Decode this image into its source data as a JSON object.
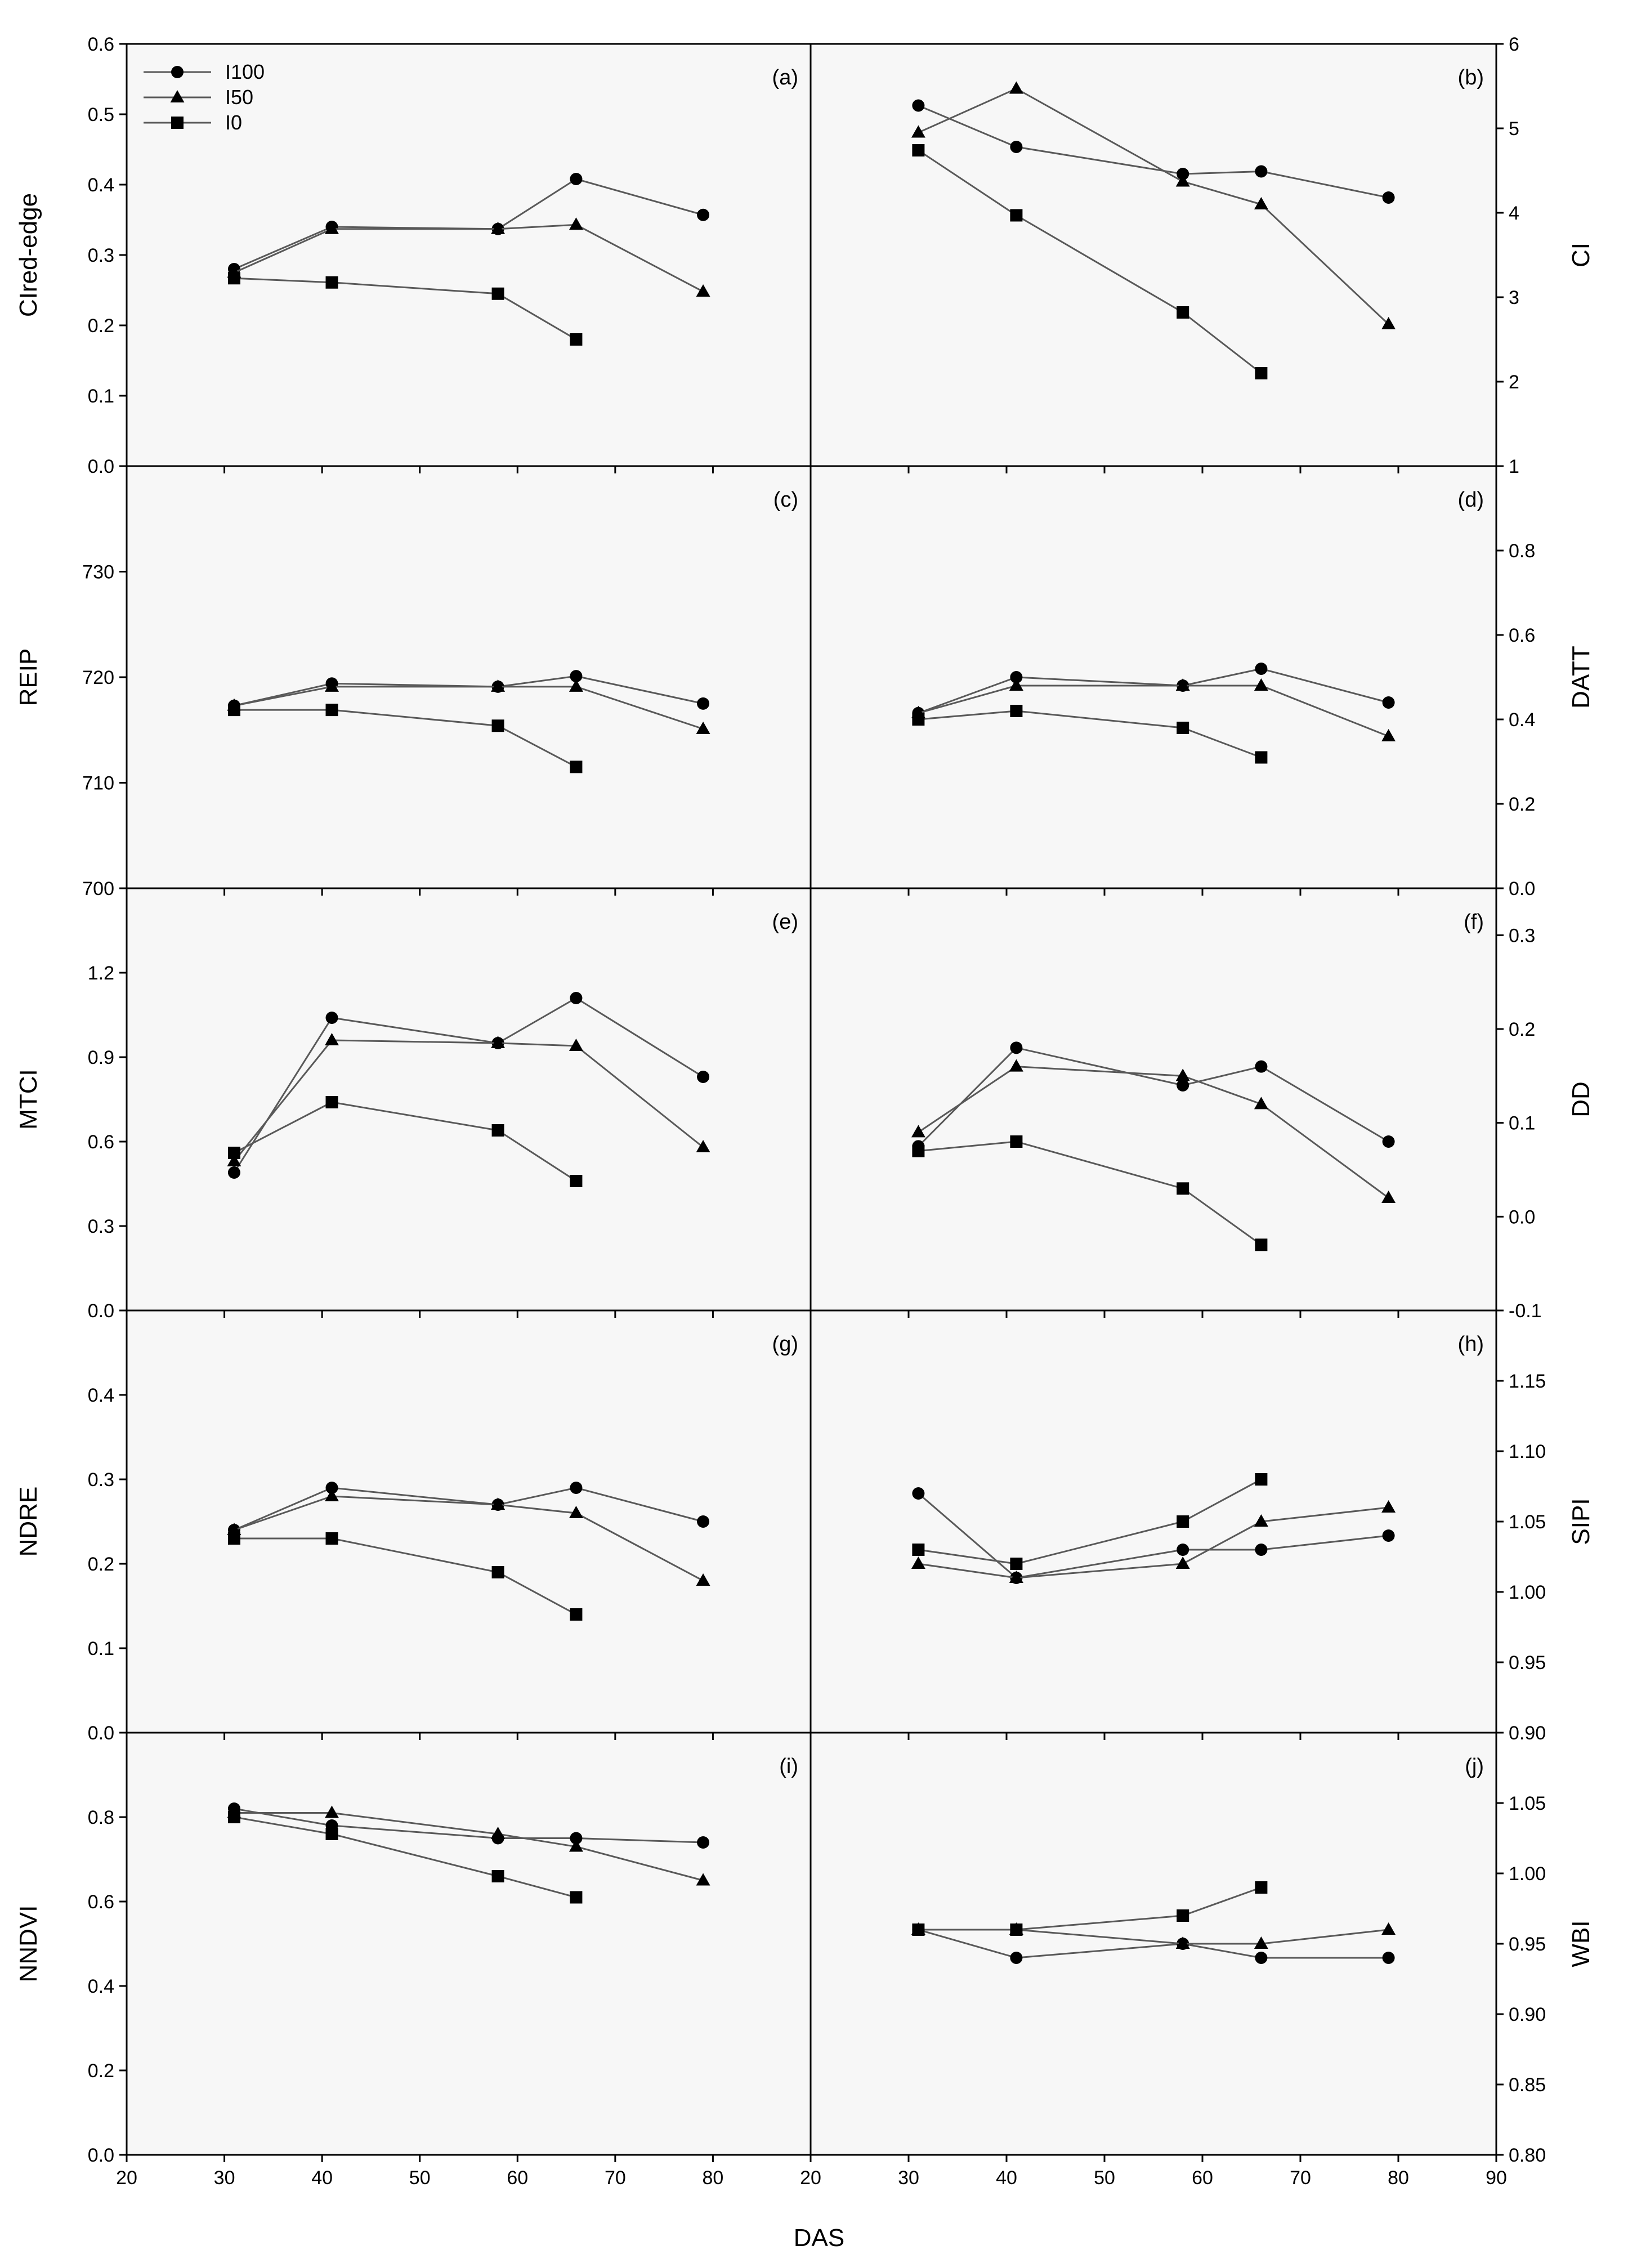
{
  "chart_data": {
    "type": "line",
    "xlabel": "DAS",
    "legend": {
      "placement": "top-left of panel (a)",
      "entries": [
        {
          "name": "I100",
          "marker": "circle"
        },
        {
          "name": "I50",
          "marker": "triangle"
        },
        {
          "name": "I0",
          "marker": "square"
        }
      ]
    },
    "panels": [
      {
        "id": "a",
        "label": "(a)",
        "ylabel": "CIred-edge",
        "column": "left",
        "row": 0,
        "xlim": [
          20,
          90
        ],
        "ylim": [
          0.0,
          0.6
        ],
        "xticks": [
          "20",
          "30",
          "40",
          "50",
          "60",
          "70",
          "80"
        ],
        "show_xticks": false,
        "yticks": [
          "0.0",
          "0.1",
          "0.2",
          "0.3",
          "0.4",
          "0.5",
          "0.6"
        ],
        "series": [
          {
            "name": "I100",
            "marker": "circle",
            "x": [
              31,
              41,
              58,
              66,
              79
            ],
            "y": [
              0.28,
              0.34,
              0.337,
              0.408,
              0.357
            ]
          },
          {
            "name": "I50",
            "marker": "triangle",
            "x": [
              31,
              41,
              58,
              66,
              79
            ],
            "y": [
              0.275,
              0.337,
              0.337,
              0.343,
              0.248
            ]
          },
          {
            "name": "I0",
            "marker": "square",
            "x": [
              31,
              41,
              58,
              66
            ],
            "y": [
              0.267,
              0.261,
              0.245,
              0.18
            ]
          }
        ]
      },
      {
        "id": "b",
        "label": "(b)",
        "ylabel": "CI",
        "column": "right",
        "row": 0,
        "xlim": [
          20,
          90
        ],
        "ylim": [
          1,
          6
        ],
        "xticks": [
          "20",
          "30",
          "40",
          "50",
          "60",
          "70",
          "80",
          "90"
        ],
        "show_xticks": false,
        "yticks": [
          "1",
          "2",
          "3",
          "4",
          "5",
          "6"
        ],
        "series": [
          {
            "name": "I100",
            "marker": "circle",
            "x": [
              31,
              41,
              58,
              66,
              79
            ],
            "y": [
              5.27,
              4.78,
              4.46,
              4.49,
              4.18
            ]
          },
          {
            "name": "I50",
            "marker": "triangle",
            "x": [
              31,
              41,
              58,
              66,
              79
            ],
            "y": [
              4.95,
              5.47,
              4.37,
              4.1,
              2.68
            ]
          },
          {
            "name": "I0",
            "marker": "square",
            "x": [
              31,
              41,
              58,
              66
            ],
            "y": [
              4.74,
              3.97,
              2.82,
              2.1
            ]
          }
        ]
      },
      {
        "id": "c",
        "label": "(c)",
        "ylabel": "REIP",
        "column": "left",
        "row": 1,
        "xlim": [
          20,
          90
        ],
        "ylim": [
          700,
          740
        ],
        "xticks": [
          "20",
          "30",
          "40",
          "50",
          "60",
          "70",
          "80"
        ],
        "show_xticks": false,
        "yticks": [
          "700",
          "710",
          "720",
          "730"
        ],
        "series": [
          {
            "name": "I100",
            "marker": "circle",
            "x": [
              31,
              41,
              58,
              66,
              79
            ],
            "y": [
              717.3,
              719.4,
              719.1,
              720.1,
              717.5
            ]
          },
          {
            "name": "I50",
            "marker": "triangle",
            "x": [
              31,
              41,
              58,
              66,
              79
            ],
            "y": [
              717.3,
              719.1,
              719.1,
              719.1,
              715.1
            ]
          },
          {
            "name": "I0",
            "marker": "square",
            "x": [
              31,
              41,
              58,
              66
            ],
            "y": [
              716.9,
              716.9,
              715.4,
              711.5
            ]
          }
        ]
      },
      {
        "id": "d",
        "label": "(d)",
        "ylabel": "DATT",
        "column": "right",
        "row": 1,
        "xlim": [
          20,
          90
        ],
        "ylim": [
          0.0,
          1.0
        ],
        "xticks": [
          "20",
          "30",
          "40",
          "50",
          "60",
          "70",
          "80",
          "90"
        ],
        "show_xticks": false,
        "yticks": [
          "0.0",
          "0.2",
          "0.4",
          "0.6",
          "0.8"
        ],
        "series": [
          {
            "name": "I100",
            "marker": "circle",
            "x": [
              31,
              41,
              58,
              66,
              79
            ],
            "y": [
              0.415,
              0.5,
              0.48,
              0.52,
              0.44
            ]
          },
          {
            "name": "I50",
            "marker": "triangle",
            "x": [
              31,
              41,
              58,
              66,
              79
            ],
            "y": [
              0.415,
              0.48,
              0.48,
              0.48,
              0.36
            ]
          },
          {
            "name": "I0",
            "marker": "square",
            "x": [
              31,
              41,
              58,
              66
            ],
            "y": [
              0.4,
              0.42,
              0.38,
              0.31
            ]
          }
        ]
      },
      {
        "id": "e",
        "label": "(e)",
        "ylabel": "MTCI",
        "column": "left",
        "row": 2,
        "xlim": [
          20,
          90
        ],
        "ylim": [
          0.0,
          1.5
        ],
        "xticks": [
          "20",
          "30",
          "40",
          "50",
          "60",
          "70",
          "80"
        ],
        "show_xticks": false,
        "yticks": [
          "0.0",
          "0.3",
          "0.6",
          "0.9",
          "1.2"
        ],
        "series": [
          {
            "name": "I100",
            "marker": "circle",
            "x": [
              31,
              41,
              58,
              66,
              79
            ],
            "y": [
              0.49,
              1.04,
              0.95,
              1.11,
              0.83
            ]
          },
          {
            "name": "I50",
            "marker": "triangle",
            "x": [
              31,
              41,
              58,
              66,
              79
            ],
            "y": [
              0.53,
              0.96,
              0.95,
              0.94,
              0.58
            ]
          },
          {
            "name": "I0",
            "marker": "square",
            "x": [
              31,
              41,
              58,
              66
            ],
            "y": [
              0.56,
              0.74,
              0.64,
              0.46
            ]
          }
        ]
      },
      {
        "id": "f",
        "label": "(f)",
        "ylabel": "DD",
        "column": "right",
        "row": 2,
        "xlim": [
          20,
          90
        ],
        "ylim": [
          -0.1,
          0.35
        ],
        "xticks": [
          "20",
          "30",
          "40",
          "50",
          "60",
          "70",
          "80",
          "90"
        ],
        "show_xticks": false,
        "yticks": [
          "-0.1",
          "0.0",
          "0.1",
          "0.2",
          "0.3"
        ],
        "series": [
          {
            "name": "I100",
            "marker": "circle",
            "x": [
              31,
              41,
              58,
              66,
              79
            ],
            "y": [
              0.075,
              0.18,
              0.14,
              0.16,
              0.08
            ]
          },
          {
            "name": "I50",
            "marker": "triangle",
            "x": [
              31,
              41,
              58,
              66,
              79
            ],
            "y": [
              0.09,
              0.16,
              0.15,
              0.12,
              0.02
            ]
          },
          {
            "name": "I0",
            "marker": "square",
            "x": [
              31,
              41,
              58,
              66
            ],
            "y": [
              0.07,
              0.08,
              0.03,
              -0.03
            ]
          }
        ]
      },
      {
        "id": "g",
        "label": "(g)",
        "ylabel": "NDRE",
        "column": "left",
        "row": 3,
        "xlim": [
          20,
          90
        ],
        "ylim": [
          0.0,
          0.5
        ],
        "xticks": [
          "20",
          "30",
          "40",
          "50",
          "60",
          "70",
          "80"
        ],
        "show_xticks": false,
        "yticks": [
          "0.0",
          "0.1",
          "0.2",
          "0.3",
          "0.4"
        ],
        "series": [
          {
            "name": "I100",
            "marker": "circle",
            "x": [
              31,
              41,
              58,
              66,
              79
            ],
            "y": [
              0.24,
              0.29,
              0.27,
              0.29,
              0.25
            ]
          },
          {
            "name": "I50",
            "marker": "triangle",
            "x": [
              31,
              41,
              58,
              66,
              79
            ],
            "y": [
              0.24,
              0.28,
              0.27,
              0.26,
              0.18
            ]
          },
          {
            "name": "I0",
            "marker": "square",
            "x": [
              31,
              41,
              58,
              66
            ],
            "y": [
              0.23,
              0.23,
              0.19,
              0.14
            ]
          }
        ]
      },
      {
        "id": "h",
        "label": "(h)",
        "ylabel": "SIPI",
        "column": "right",
        "row": 3,
        "xlim": [
          20,
          90
        ],
        "ylim": [
          0.9,
          1.2
        ],
        "xticks": [
          "20",
          "30",
          "40",
          "50",
          "60",
          "70",
          "80",
          "90"
        ],
        "show_xticks": false,
        "yticks": [
          "0.90",
          "0.95",
          "1.00",
          "1.05",
          "1.10",
          "1.15"
        ],
        "series": [
          {
            "name": "I100",
            "marker": "circle",
            "x": [
              31,
              41,
              58,
              66,
              79
            ],
            "y": [
              1.07,
              1.01,
              1.03,
              1.03,
              1.04
            ]
          },
          {
            "name": "I50",
            "marker": "triangle",
            "x": [
              31,
              41,
              58,
              66,
              79
            ],
            "y": [
              1.02,
              1.01,
              1.02,
              1.05,
              1.06
            ]
          },
          {
            "name": "I0",
            "marker": "square",
            "x": [
              31,
              41,
              58,
              66
            ],
            "y": [
              1.03,
              1.02,
              1.05,
              1.08
            ]
          }
        ]
      },
      {
        "id": "i",
        "label": "(i)",
        "ylabel": "NNDVI",
        "column": "left",
        "row": 4,
        "xlim": [
          20,
          90
        ],
        "ylim": [
          0.0,
          1.0
        ],
        "xticks": [
          "20",
          "30",
          "40",
          "50",
          "60",
          "70",
          "80"
        ],
        "show_xticks": true,
        "yticks": [
          "0.0",
          "0.2",
          "0.4",
          "0.6",
          "0.8"
        ],
        "series": [
          {
            "name": "I100",
            "marker": "circle",
            "x": [
              31,
              41,
              58,
              66,
              79
            ],
            "y": [
              0.82,
              0.78,
              0.75,
              0.75,
              0.74
            ]
          },
          {
            "name": "I50",
            "marker": "triangle",
            "x": [
              31,
              41,
              58,
              66,
              79
            ],
            "y": [
              0.81,
              0.81,
              0.76,
              0.73,
              0.65
            ]
          },
          {
            "name": "I0",
            "marker": "square",
            "x": [
              31,
              41,
              58,
              66
            ],
            "y": [
              0.8,
              0.76,
              0.66,
              0.61
            ]
          }
        ]
      },
      {
        "id": "j",
        "label": "(j)",
        "ylabel": "WBI",
        "column": "right",
        "row": 4,
        "xlim": [
          20,
          90
        ],
        "ylim": [
          0.8,
          1.1
        ],
        "xticks": [
          "20",
          "30",
          "40",
          "50",
          "60",
          "70",
          "80",
          "90"
        ],
        "show_xticks": true,
        "yticks": [
          "0.80",
          "0.85",
          "0.90",
          "0.95",
          "1.00",
          "1.05"
        ],
        "series": [
          {
            "name": "I100",
            "marker": "circle",
            "x": [
              31,
              41,
              58,
              66,
              79
            ],
            "y": [
              0.96,
              0.94,
              0.95,
              0.94,
              0.94
            ]
          },
          {
            "name": "I50",
            "marker": "triangle",
            "x": [
              31,
              41,
              58,
              66,
              79
            ],
            "y": [
              0.96,
              0.96,
              0.95,
              0.95,
              0.96
            ]
          },
          {
            "name": "I0",
            "marker": "square",
            "x": [
              31,
              41,
              58,
              66
            ],
            "y": [
              0.96,
              0.96,
              0.97,
              0.99
            ]
          }
        ]
      }
    ]
  }
}
